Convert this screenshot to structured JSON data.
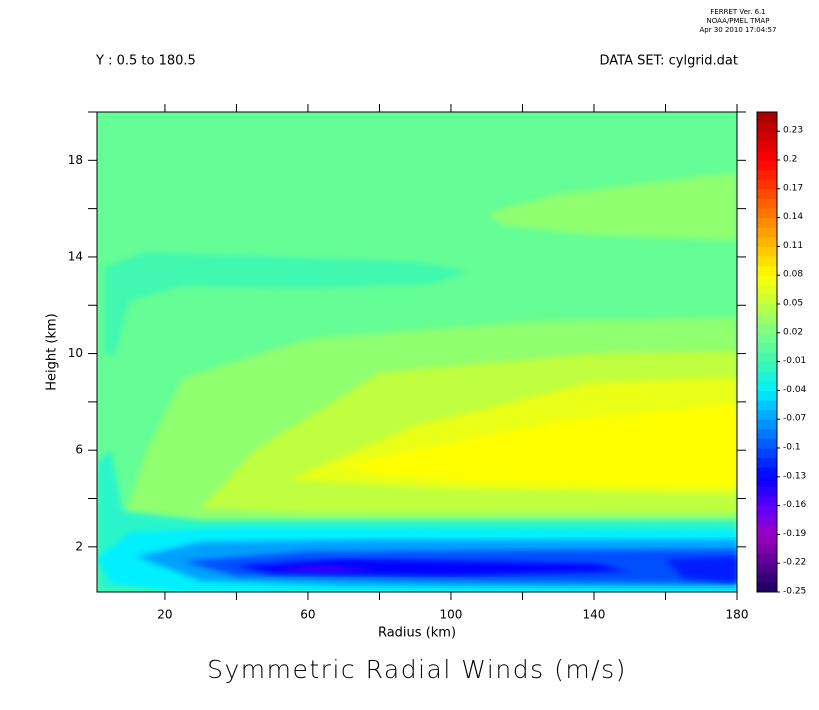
{
  "chart_data": {
    "type": "contour",
    "header": [
      "FERRET Ver. 6.1",
      "NOAA/PMEL TMAP",
      "Apr 30 2010 17:04:57"
    ],
    "subtitle_left": "Y : 0.5 to 180.5",
    "subtitle_right": "DATA SET: cylgrid.dat",
    "title": "Symmetric Radial Winds (m/s)",
    "xlabel": "Radius (km)",
    "ylabel": "Height (km)",
    "xlim": [
      1,
      180
    ],
    "ylim": [
      0.13,
      20
    ],
    "xticks": [
      20,
      60,
      100,
      140,
      180
    ],
    "xminor": [
      40,
      80,
      120,
      160
    ],
    "yticks": [
      2,
      6,
      10,
      14,
      18
    ],
    "yminor": [
      4,
      8,
      12,
      16,
      20
    ],
    "colorbar": {
      "lim": [
        -0.25,
        0.25
      ],
      "step": 0.01,
      "ticks": [
        -0.25,
        -0.22,
        -0.19,
        -0.16,
        -0.13,
        -0.1,
        -0.07,
        -0.04,
        -0.01,
        0.02,
        0.05,
        0.08,
        0.11,
        0.14,
        0.17,
        0.2,
        0.23
      ],
      "colormap": [
        {
          "value": -0.25,
          "color": "#14005a"
        },
        {
          "value": -0.22,
          "color": "#5a0096"
        },
        {
          "value": -0.19,
          "color": "#a000c0"
        },
        {
          "value": -0.16,
          "color": "#5a00ff"
        },
        {
          "value": -0.13,
          "color": "#0000ff"
        },
        {
          "value": -0.1,
          "color": "#0050ff"
        },
        {
          "value": -0.07,
          "color": "#00a0ff"
        },
        {
          "value": -0.04,
          "color": "#00f0ff"
        },
        {
          "value": -0.01,
          "color": "#40f8b0"
        },
        {
          "value": 0.02,
          "color": "#78ff88"
        },
        {
          "value": 0.05,
          "color": "#c0ff40"
        },
        {
          "value": 0.08,
          "color": "#ffff00"
        },
        {
          "value": 0.11,
          "color": "#ffc000"
        },
        {
          "value": 0.14,
          "color": "#ff8000"
        },
        {
          "value": 0.17,
          "color": "#ff4000"
        },
        {
          "value": 0.2,
          "color": "#ff0000"
        },
        {
          "value": 0.25,
          "color": "#a00000"
        }
      ]
    },
    "regions": [
      {
        "value": 0.01,
        "points": [
          [
            1,
            0.13
          ],
          [
            180,
            0.13
          ],
          [
            180,
            20
          ],
          [
            1,
            20
          ]
        ]
      },
      {
        "value": -0.01,
        "points": [
          [
            3,
            13.6
          ],
          [
            15,
            14.2
          ],
          [
            50,
            14.0
          ],
          [
            90,
            13.8
          ],
          [
            105,
            13.4
          ],
          [
            95,
            12.9
          ],
          [
            60,
            12.7
          ],
          [
            25,
            12.8
          ],
          [
            10,
            12.2
          ],
          [
            6,
            10
          ],
          [
            3,
            10
          ]
        ]
      },
      {
        "value": 0.03,
        "points": [
          [
            110,
            15.8
          ],
          [
            130,
            16.6
          ],
          [
            180,
            17.5
          ],
          [
            180,
            14.7
          ],
          [
            140,
            14.9
          ],
          [
            115,
            15.3
          ]
        ]
      },
      {
        "value": 0.03,
        "points": [
          [
            8,
            3
          ],
          [
            15,
            6
          ],
          [
            25,
            9
          ],
          [
            60,
            10.6
          ],
          [
            120,
            11.3
          ],
          [
            180,
            11.5
          ],
          [
            180,
            3
          ],
          [
            60,
            3
          ]
        ]
      },
      {
        "value": 0.05,
        "points": [
          [
            30,
            3.6
          ],
          [
            45,
            6
          ],
          [
            80,
            9.2
          ],
          [
            140,
            10
          ],
          [
            180,
            10.1
          ],
          [
            180,
            3.4
          ],
          [
            60,
            3.4
          ]
        ]
      },
      {
        "value": 0.07,
        "points": [
          [
            55,
            4.8
          ],
          [
            90,
            7
          ],
          [
            140,
            8.8
          ],
          [
            180,
            9
          ],
          [
            180,
            4.2
          ],
          [
            100,
            4.4
          ]
        ]
      },
      {
        "value": 0.08,
        "points": [
          [
            70,
            5.4
          ],
          [
            100,
            6.3
          ],
          [
            130,
            7.2
          ],
          [
            180,
            7.9
          ],
          [
            180,
            4.5
          ],
          [
            110,
            4.7
          ],
          [
            80,
            5
          ]
        ]
      },
      {
        "value": -0.02,
        "points": [
          [
            1,
            5.5
          ],
          [
            5,
            6
          ],
          [
            8,
            3.5
          ],
          [
            30,
            3.1
          ],
          [
            180,
            3.1
          ],
          [
            180,
            0.13
          ],
          [
            1,
            0.13
          ]
        ]
      },
      {
        "value": -0.04,
        "points": [
          [
            1,
            1.5
          ],
          [
            10,
            2.6
          ],
          [
            40,
            2.8
          ],
          [
            180,
            2.7
          ],
          [
            180,
            0.13
          ],
          [
            25,
            0.13
          ],
          [
            5,
            0.5
          ]
        ]
      },
      {
        "value": -0.07,
        "points": [
          [
            12,
            1.6
          ],
          [
            30,
            2.2
          ],
          [
            80,
            2.3
          ],
          [
            180,
            2.3
          ],
          [
            180,
            0.3
          ],
          [
            70,
            0.4
          ],
          [
            30,
            0.6
          ]
        ]
      },
      {
        "value": -0.1,
        "points": [
          [
            25,
            1.4
          ],
          [
            60,
            1.8
          ],
          [
            180,
            1.9
          ],
          [
            180,
            0.5
          ],
          [
            100,
            0.6
          ],
          [
            40,
            0.8
          ]
        ]
      },
      {
        "value": -0.13,
        "points": [
          [
            40,
            1.2
          ],
          [
            70,
            1.5
          ],
          [
            140,
            1.3
          ],
          [
            150,
            1.0
          ],
          [
            100,
            0.8
          ],
          [
            50,
            0.9
          ]
        ]
      },
      {
        "value": -0.12,
        "points": [
          [
            160,
            1.5
          ],
          [
            180,
            1.6
          ],
          [
            180,
            0.5
          ],
          [
            165,
            0.7
          ]
        ]
      },
      {
        "value": -0.15,
        "points": [
          [
            50,
            1.1
          ],
          [
            65,
            1.25
          ],
          [
            80,
            1.05
          ],
          [
            60,
            0.95
          ]
        ]
      }
    ]
  }
}
